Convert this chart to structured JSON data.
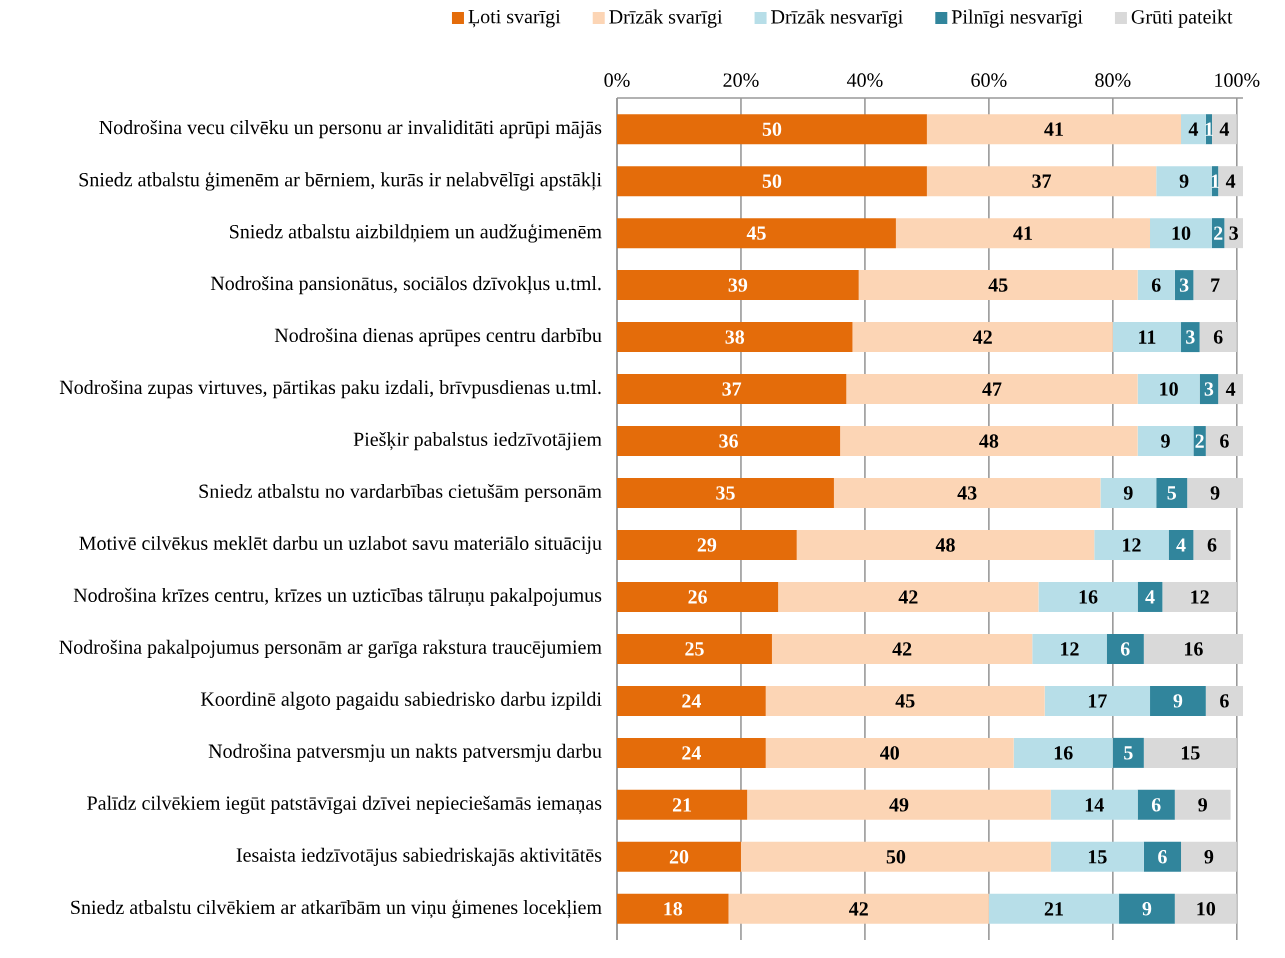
{
  "chart_data": {
    "type": "bar",
    "orientation": "horizontal",
    "stacked": true,
    "data_labels": true,
    "grid": "x",
    "legend": "top",
    "categories": [
      "Nodrošina vecu cilvēku un personu ar invaliditāti aprūpi mājās",
      "Sniedz atbalstu ģimenēm ar bērniem, kurās ir nelabvēlīgi apstākļi",
      "Sniedz atbalstu aizbildņiem un audžuģimenēm",
      "Nodrošina pansionātus, sociālos dzīvokļus u.tml.",
      "Nodrošina dienas aprūpes centru darbību",
      "Nodrošina zupas virtuves, pārtikas paku izdali, brīvpusdienas u.tml.",
      "Piešķir pabalstus iedzīvotājiem",
      "Sniedz atbalstu no vardarbības cietušām personām",
      "Motivē cilvēkus meklēt darbu un uzlabot savu materiālo situāciju",
      "Nodrošina krīzes centru, krīzes un uzticības tālruņu pakalpojumus",
      "Nodrošina pakalpojumus personām ar garīga rakstura traucējumiem",
      "Koordinē algoto pagaidu sabiedrisko darbu izpildi",
      "Nodrošina patversmju un nakts patversmju darbu",
      "Palīdz cilvēkiem iegūt patstāvīgai dzīvei nepieciešamās iemaņas",
      "Iesaista iedzīvotājus sabiedriskajās aktivitātēs",
      "Sniedz atbalstu cilvēkiem ar atkarībām un viņu ģimenes locekļiem"
    ],
    "xlim": [
      0,
      101
    ],
    "xticks": [
      {
        "value": 0,
        "label": "0%"
      },
      {
        "value": 20,
        "label": "20%"
      },
      {
        "value": 40,
        "label": "40%"
      },
      {
        "value": 60,
        "label": "60%"
      },
      {
        "value": 80,
        "label": "80%"
      },
      {
        "value": 100,
        "label": "100%"
      }
    ],
    "series": [
      {
        "name": "Ļoti svarīgi",
        "color": "#e46c0a",
        "values": [
          50,
          50,
          45,
          39,
          38,
          37,
          36,
          35,
          29,
          26,
          25,
          24,
          24,
          21,
          20,
          18
        ]
      },
      {
        "name": "Drīzāk svarīgi",
        "color": "#fcd5b5",
        "values": [
          41,
          37,
          41,
          45,
          42,
          47,
          48,
          43,
          48,
          42,
          42,
          45,
          40,
          49,
          50,
          42
        ]
      },
      {
        "name": "Drīzāk nesvarīgi",
        "color": "#b7dee8",
        "values": [
          4,
          9,
          10,
          6,
          11,
          10,
          9,
          9,
          12,
          16,
          12,
          17,
          16,
          14,
          15,
          21
        ]
      },
      {
        "name": "Pilnīgi nesvarīgi",
        "color": "#31859c",
        "values": [
          1,
          1,
          2,
          3,
          3,
          3,
          2,
          5,
          4,
          4,
          6,
          9,
          5,
          6,
          6,
          9
        ]
      },
      {
        "name": "Grūti pateikt",
        "color": "#d9d9d9",
        "values": [
          4,
          4,
          3,
          7,
          6,
          4,
          6,
          9,
          6,
          12,
          16,
          6,
          15,
          9,
          9,
          10
        ]
      }
    ]
  }
}
